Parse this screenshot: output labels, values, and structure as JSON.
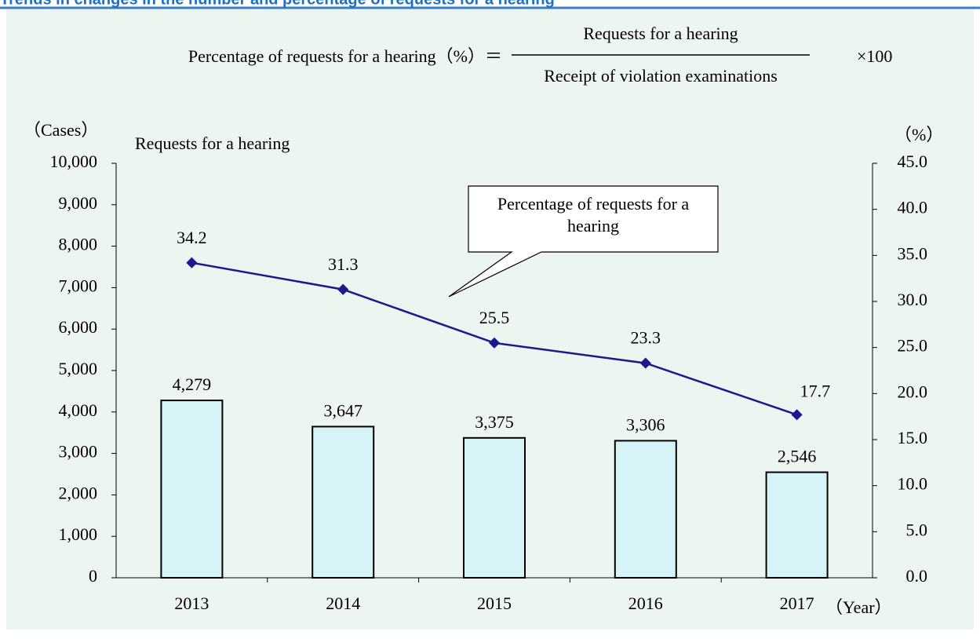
{
  "chart_data": {
    "type": "bar_line",
    "title": "Trends in changes in the number and percentage of requests for a hearing",
    "formula": {
      "left": "Percentage of requests for a hearing（%）＝",
      "numerator": "Requests for a hearing",
      "denominator": "Receipt of violation examinations",
      "right": "×100"
    },
    "ylabel": "（Cases）",
    "y2label": "（%）",
    "xlabel": "（Year）",
    "categories": [
      "2013",
      "2014",
      "2015",
      "2016",
      "2017"
    ],
    "series": [
      {
        "name": "Requests for a hearing",
        "color": "#d6f4f7",
        "values": [
          4279,
          3647,
          3375,
          3306,
          2546
        ],
        "value_labels": [
          "4,279",
          "3,647",
          "3,375",
          "3,306",
          "2,546"
        ]
      },
      {
        "name": "Percentage of requests for a hearing",
        "color": "#1a1a8c",
        "axis": "y2",
        "values": [
          34.2,
          31.3,
          25.5,
          23.3,
          17.7
        ]
      }
    ],
    "ylim": [
      0,
      10000
    ],
    "yticks": [
      0,
      {
        "value": 1000,
        "label": "1,000"
      },
      {
        "value": 2000,
        "label": "2,000"
      },
      {
        "value": 3000,
        "label": "3,000"
      },
      {
        "value": 4000,
        "label": "4,000"
      },
      {
        "value": 5000,
        "label": "5,000"
      },
      {
        "value": 6000,
        "label": "6,000"
      },
      {
        "value": 7000,
        "label": "7,000"
      },
      {
        "value": 8000,
        "label": "8,000"
      },
      {
        "value": 9000,
        "label": "9,000"
      },
      {
        "value": 10000,
        "label": "10,000"
      }
    ],
    "y2lim": [
      0,
      45
    ],
    "y2ticks": [
      {
        "value": 0,
        "label": "0.0"
      },
      {
        "value": 5,
        "label": "5.0"
      },
      {
        "value": 10,
        "label": "10.0"
      },
      {
        "value": 15,
        "label": "15.0"
      },
      {
        "value": 20,
        "label": "20.0"
      },
      {
        "value": 25,
        "label": "25.0"
      },
      {
        "value": 30,
        "label": "30.0"
      },
      {
        "value": 35,
        "label": "35.0"
      },
      {
        "value": 40,
        "label": "40.0"
      },
      {
        "value": 45,
        "label": "45.0"
      }
    ]
  }
}
